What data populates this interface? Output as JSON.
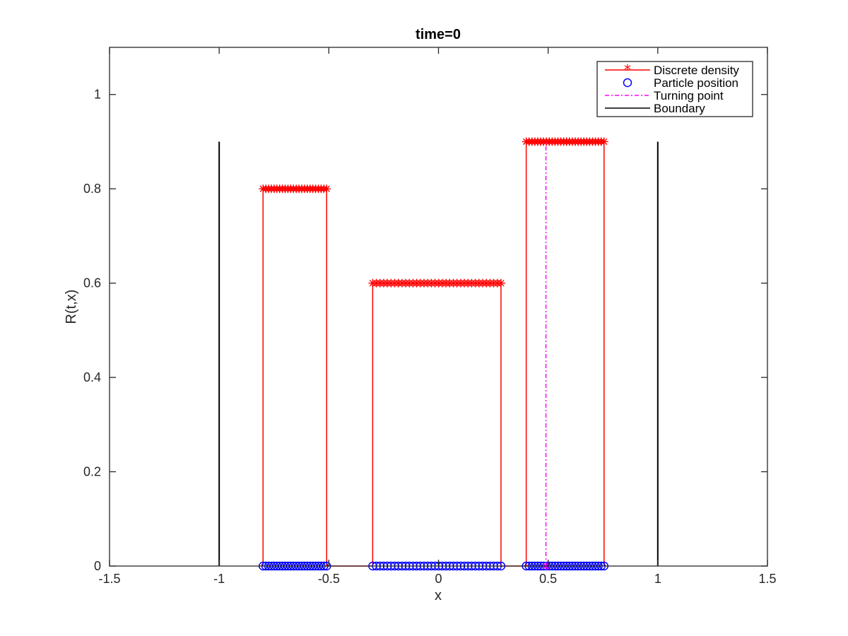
{
  "chart_data": {
    "type": "line",
    "title": "time=0",
    "xlabel": "x",
    "ylabel": "R(t,x)",
    "xlim": [
      -1.5,
      1.5
    ],
    "ylim": [
      0,
      1.1
    ],
    "xticks": [
      -1.5,
      -1,
      -0.5,
      0,
      0.5,
      1,
      1.5
    ],
    "xtick_labels": [
      "-1.5",
      "-1",
      "-0.5",
      "0",
      "0.5",
      "1",
      "1.5"
    ],
    "yticks": [
      0,
      0.2,
      0.4,
      0.6,
      0.8,
      1
    ],
    "ytick_labels": [
      "0",
      "0.2",
      "0.4",
      "0.6",
      "0.8",
      "1"
    ],
    "grid": false,
    "legend_position": "top-right",
    "colors": {
      "density": "#ff0000",
      "particles": "#0000ff",
      "turning": "#ff00ff",
      "boundary": "#000000"
    },
    "series": [
      {
        "name": "Discrete density",
        "style": "red solid line with star markers",
        "blocks": [
          {
            "x_start": -0.8,
            "x_end": -0.51,
            "height": 0.8,
            "points": 24
          },
          {
            "x_start": -0.3,
            "x_end": 0.285,
            "height": 0.6,
            "points": 36
          },
          {
            "x_start": 0.4,
            "x_end": 0.755,
            "height": 0.9,
            "points": 28
          }
        ]
      },
      {
        "name": "Particle position",
        "style": "blue circle markers at y=0",
        "y": 0,
        "segments": [
          {
            "x_start": -0.8,
            "x_end": -0.51,
            "points": 24
          },
          {
            "x_start": -0.3,
            "x_end": 0.285,
            "points": 36
          },
          {
            "x_start": 0.4,
            "x_end": 0.755,
            "points": 28
          }
        ]
      },
      {
        "name": "Turning point",
        "style": "magenta dash-dot vertical line",
        "x": 0.49,
        "y_range": [
          0,
          0.9
        ]
      },
      {
        "name": "Boundary",
        "style": "black solid vertical lines",
        "x": [
          -1,
          1
        ],
        "y_range": [
          0,
          0.9
        ]
      }
    ]
  }
}
